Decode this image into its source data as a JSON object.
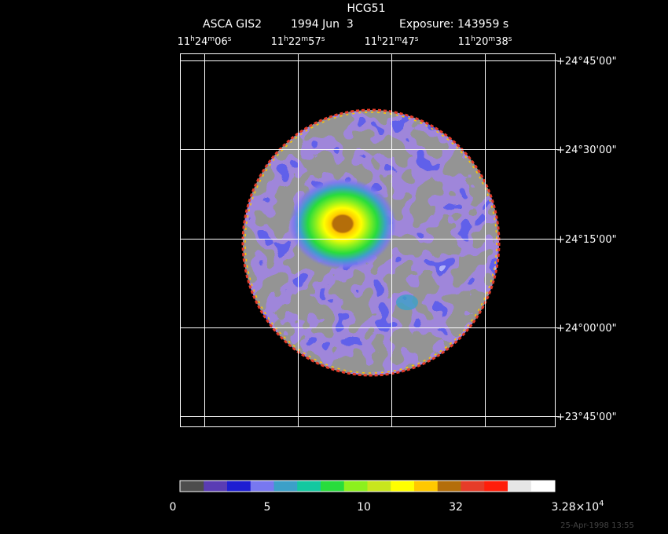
{
  "title": "HCG51",
  "subtitle": [
    "ASCA GIS2",
    "1994 Jun  3",
    "Exposure: 143959 s"
  ],
  "ra_labels": [
    [
      "11",
      "h",
      "24",
      "m",
      "06",
      "s"
    ],
    [
      "11",
      "h",
      "22",
      "m",
      "57",
      "s"
    ],
    [
      "11",
      "h",
      "21",
      "m",
      "47",
      "s"
    ],
    [
      "11",
      "h",
      "20",
      "m",
      "38",
      "s"
    ]
  ],
  "dec_labels": [
    "+24°45'00\"",
    "+24°30'00\"",
    "+24°15'00\"",
    "+24°00'00\"",
    "+23°45'00\""
  ],
  "colorbar": {
    "colors": [
      "#4d4d4d",
      "#5a3cb4",
      "#1e1ed2",
      "#7878f0",
      "#3ca0c8",
      "#14c8a0",
      "#28dc3c",
      "#8cf01e",
      "#c8e61e",
      "#ffff00",
      "#ffc800",
      "#b46e0a",
      "#e63c28",
      "#ff1e0a",
      "#e6e6e6",
      "#ffffff"
    ],
    "labels": [
      "0",
      "5",
      "10",
      "32",
      [
        "3.28×10",
        "4"
      ]
    ]
  },
  "timestamp": "25-Apr-1998 13:55"
}
